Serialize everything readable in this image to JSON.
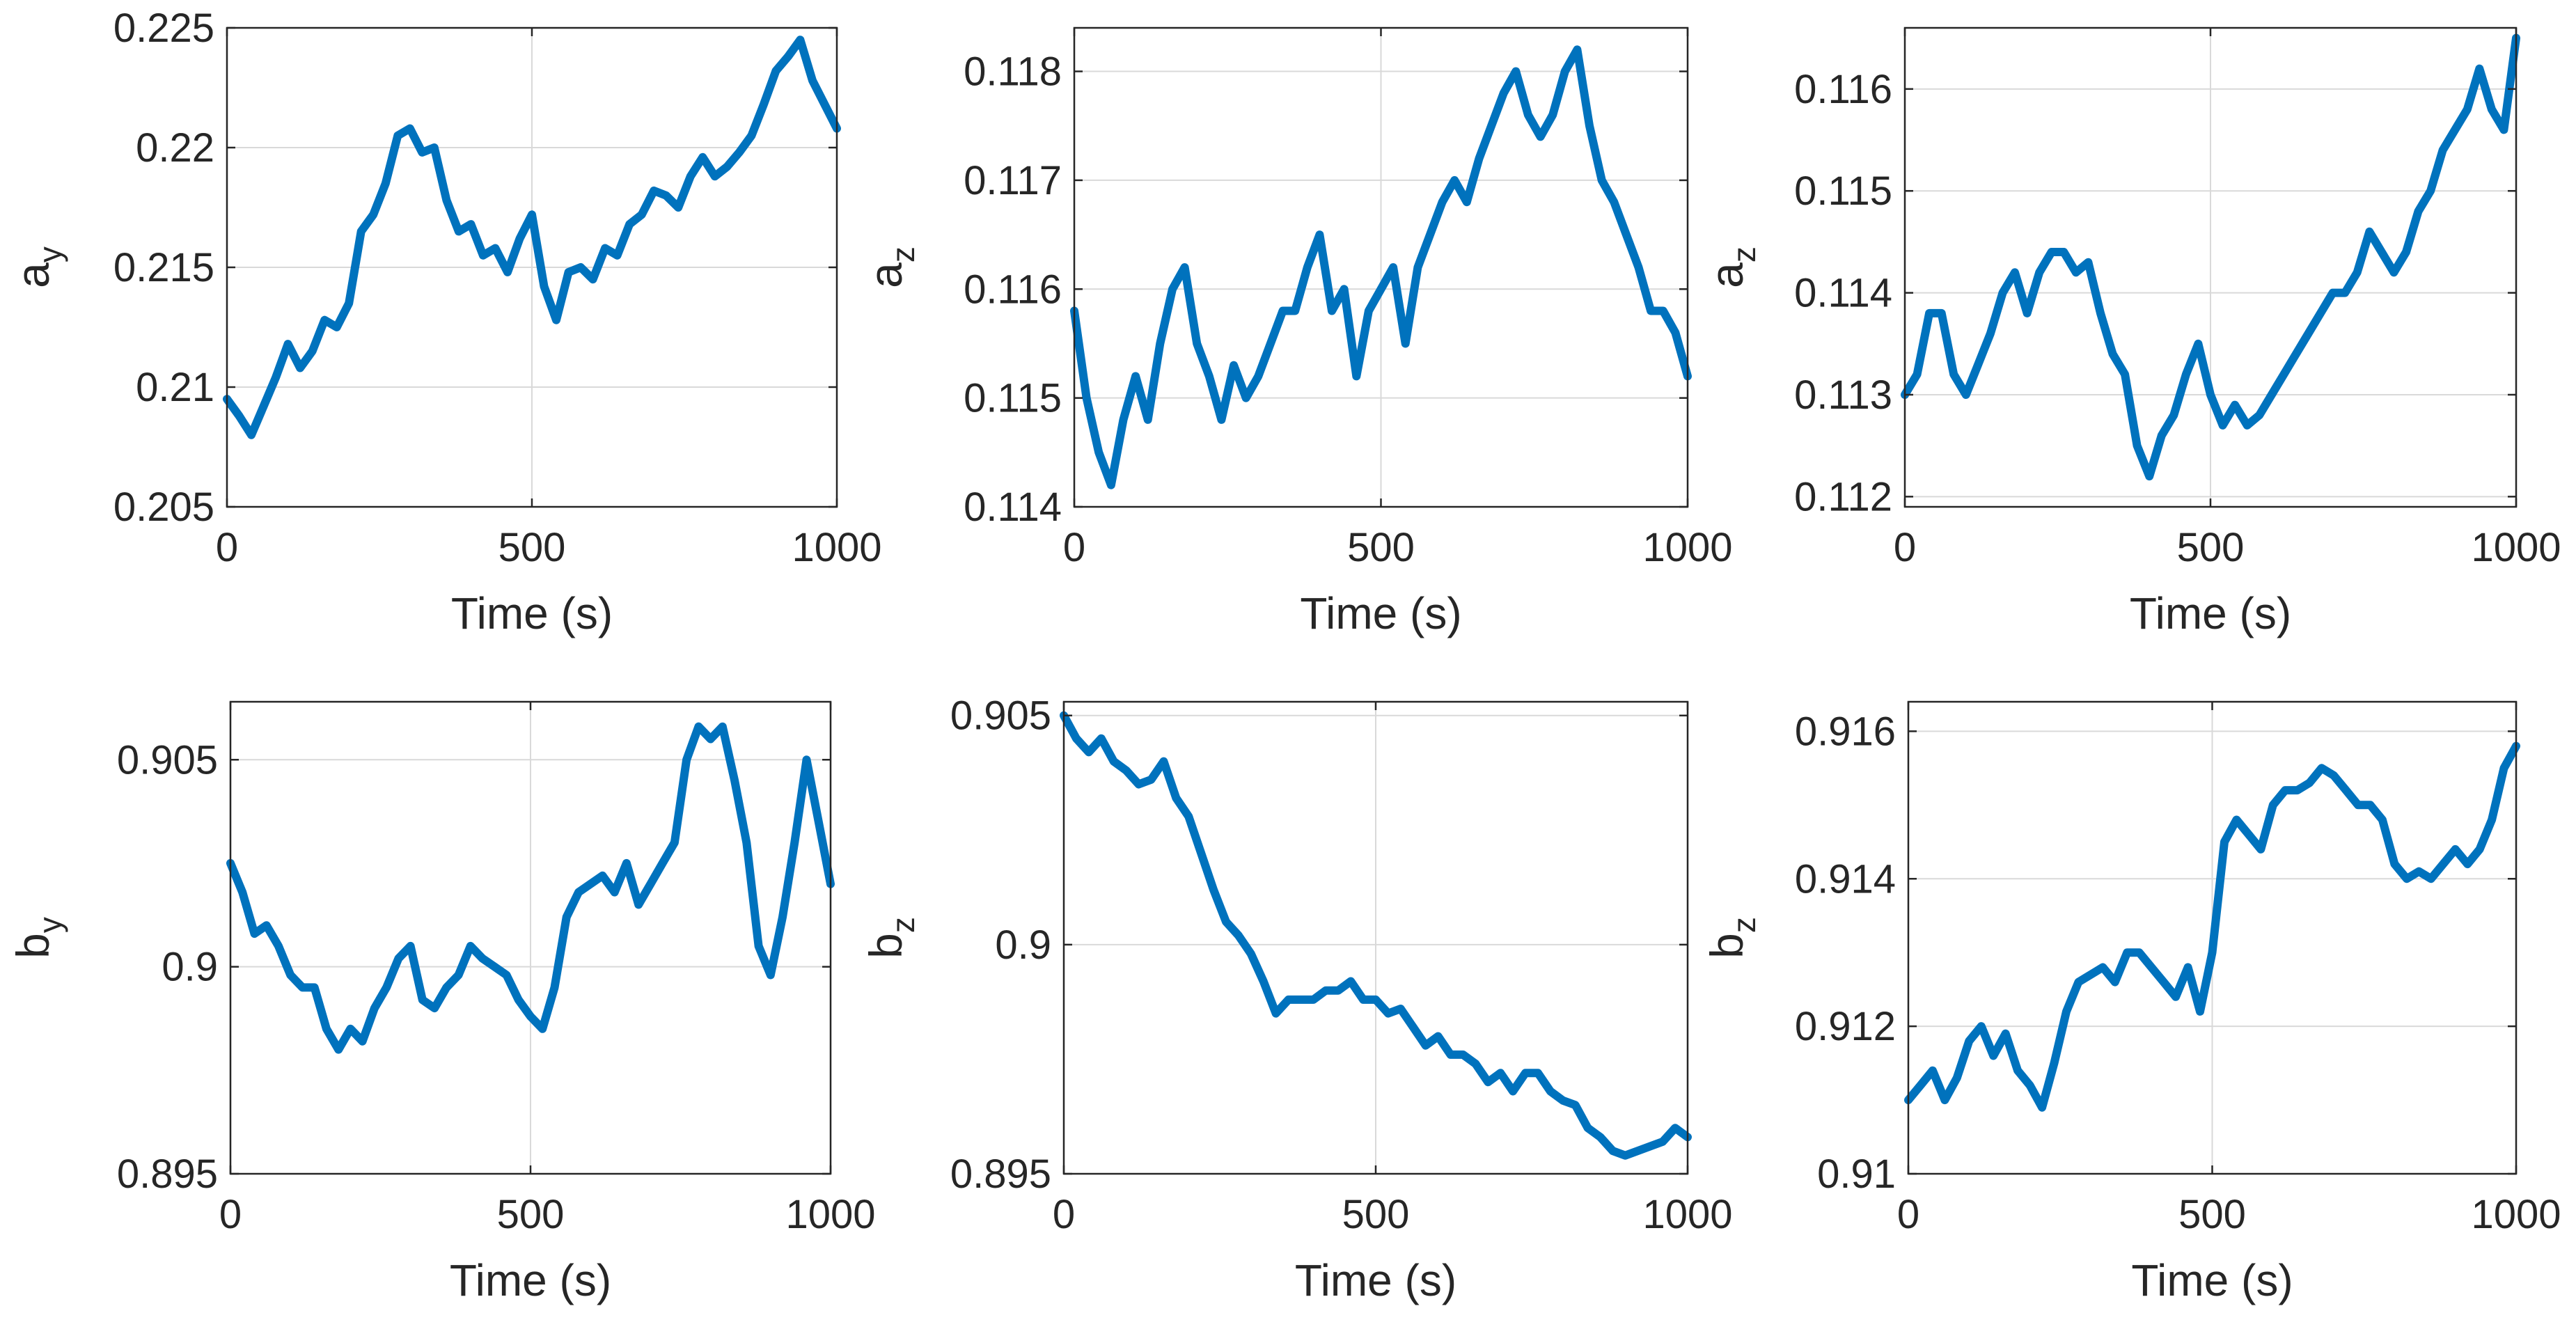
{
  "figure": {
    "line_color": "#0072BD",
    "grid_color": "#d9d9d9",
    "axis_color": "#262626"
  },
  "chart_data": [
    {
      "type": "line",
      "xlabel": "Time (s)",
      "ylabel_main": "a",
      "ylabel_sub": "y",
      "xlim": [
        0,
        1000
      ],
      "ylim": [
        0.205,
        0.225
      ],
      "xticks": [
        0,
        500,
        1000
      ],
      "xtick_labels": [
        "0",
        "500",
        "1000"
      ],
      "yticks": [
        0.205,
        0.21,
        0.215,
        0.22,
        0.225
      ],
      "ytick_labels": [
        "0.205",
        "0.21",
        "0.215",
        "0.22",
        "0.225"
      ],
      "grid": true,
      "series": [
        {
          "x": [
            0,
            20,
            40,
            60,
            80,
            100,
            120,
            140,
            160,
            180,
            200,
            220,
            240,
            260,
            280,
            300,
            320,
            340,
            360,
            380,
            400,
            420,
            440,
            460,
            480,
            500,
            520,
            540,
            560,
            580,
            600,
            620,
            640,
            660,
            680,
            700,
            720,
            740,
            760,
            780,
            800,
            820,
            840,
            860,
            880,
            900,
            920,
            940,
            960,
            980,
            1000
          ],
          "y": [
            0.2095,
            0.2088,
            0.208,
            0.2092,
            0.2104,
            0.2118,
            0.2108,
            0.2115,
            0.2128,
            0.2125,
            0.2135,
            0.2165,
            0.2172,
            0.2185,
            0.2205,
            0.2208,
            0.2198,
            0.22,
            0.2178,
            0.2165,
            0.2168,
            0.2155,
            0.2158,
            0.2148,
            0.2162,
            0.2172,
            0.2142,
            0.2128,
            0.2148,
            0.215,
            0.2145,
            0.2158,
            0.2155,
            0.2168,
            0.2172,
            0.2182,
            0.218,
            0.2175,
            0.2188,
            0.2196,
            0.2188,
            0.2192,
            0.2198,
            0.2205,
            0.2218,
            0.2232,
            0.2238,
            0.2245,
            0.2228,
            0.2218,
            0.2208
          ]
        }
      ]
    },
    {
      "type": "line",
      "xlabel": "Time (s)",
      "ylabel_main": "a",
      "ylabel_sub": "z",
      "xlim": [
        0,
        1000
      ],
      "ylim": [
        0.114,
        0.1184
      ],
      "xticks": [
        0,
        500,
        1000
      ],
      "xtick_labels": [
        "0",
        "500",
        "1000"
      ],
      "yticks": [
        0.114,
        0.115,
        0.116,
        0.117,
        0.118
      ],
      "ytick_labels": [
        "0.114",
        "0.115",
        "0.116",
        "0.117",
        "0.118"
      ],
      "grid": true,
      "series": [
        {
          "x": [
            0,
            20,
            40,
            60,
            80,
            100,
            120,
            140,
            160,
            180,
            200,
            220,
            240,
            260,
            280,
            300,
            320,
            340,
            360,
            380,
            400,
            420,
            440,
            460,
            480,
            500,
            520,
            540,
            560,
            580,
            600,
            620,
            640,
            660,
            680,
            700,
            720,
            740,
            760,
            780,
            800,
            820,
            840,
            860,
            880,
            900,
            920,
            940,
            960,
            980,
            1000
          ],
          "y": [
            0.1158,
            0.115,
            0.1145,
            0.1142,
            0.1148,
            0.1152,
            0.1148,
            0.1155,
            0.116,
            0.1162,
            0.1155,
            0.1152,
            0.1148,
            0.1153,
            0.115,
            0.1152,
            0.1155,
            0.1158,
            0.1158,
            0.1162,
            0.1165,
            0.1158,
            0.116,
            0.1152,
            0.1158,
            0.116,
            0.1162,
            0.1155,
            0.1162,
            0.1165,
            0.1168,
            0.117,
            0.1168,
            0.1172,
            0.1175,
            0.1178,
            0.118,
            0.1176,
            0.1174,
            0.1176,
            0.118,
            0.1182,
            0.1175,
            0.117,
            0.1168,
            0.1165,
            0.1162,
            0.1158,
            0.1158,
            0.1156,
            0.1152
          ]
        }
      ]
    },
    {
      "type": "line",
      "xlabel": "Time (s)",
      "ylabel_main": "a",
      "ylabel_sub": "z",
      "xlim": [
        0,
        1000
      ],
      "ylim": [
        0.1119,
        0.1166
      ],
      "xticks": [
        0,
        500,
        1000
      ],
      "xtick_labels": [
        "0",
        "500",
        "1000"
      ],
      "yticks": [
        0.112,
        0.113,
        0.114,
        0.115,
        0.116
      ],
      "ytick_labels": [
        "0.112",
        "0.113",
        "0.114",
        "0.115",
        "0.116"
      ],
      "grid": true,
      "series": [
        {
          "x": [
            0,
            20,
            40,
            60,
            80,
            100,
            120,
            140,
            160,
            180,
            200,
            220,
            240,
            260,
            280,
            300,
            320,
            340,
            360,
            380,
            400,
            420,
            440,
            460,
            480,
            500,
            520,
            540,
            560,
            580,
            600,
            620,
            640,
            660,
            680,
            700,
            720,
            740,
            760,
            780,
            800,
            820,
            840,
            860,
            880,
            900,
            920,
            940,
            960,
            980,
            1000
          ],
          "y": [
            0.113,
            0.1132,
            0.1138,
            0.1138,
            0.1132,
            0.113,
            0.1133,
            0.1136,
            0.114,
            0.1142,
            0.1138,
            0.1142,
            0.1144,
            0.1144,
            0.1142,
            0.1143,
            0.1138,
            0.1134,
            0.1132,
            0.1125,
            0.1122,
            0.1126,
            0.1128,
            0.1132,
            0.1135,
            0.113,
            0.1127,
            0.1129,
            0.1127,
            0.1128,
            0.113,
            0.1132,
            0.1134,
            0.1136,
            0.1138,
            0.114,
            0.114,
            0.1142,
            0.1146,
            0.1144,
            0.1142,
            0.1144,
            0.1148,
            0.115,
            0.1154,
            0.1156,
            0.1158,
            0.1162,
            0.1158,
            0.1156,
            0.1165
          ]
        }
      ]
    },
    {
      "type": "line",
      "xlabel": "Time (s)",
      "ylabel_main": "b",
      "ylabel_sub": "y",
      "xlim": [
        0,
        1000
      ],
      "ylim": [
        0.895,
        0.9064
      ],
      "xticks": [
        0,
        500,
        1000
      ],
      "xtick_labels": [
        "0",
        "500",
        "1000"
      ],
      "yticks": [
        0.895,
        0.9,
        0.905
      ],
      "ytick_labels": [
        "0.895",
        "0.9",
        "0.905"
      ],
      "grid": true,
      "series": [
        {
          "x": [
            0,
            20,
            40,
            60,
            80,
            100,
            120,
            140,
            160,
            180,
            200,
            220,
            240,
            260,
            280,
            300,
            320,
            340,
            360,
            380,
            400,
            420,
            440,
            460,
            480,
            500,
            520,
            540,
            560,
            580,
            600,
            620,
            640,
            660,
            680,
            700,
            720,
            740,
            760,
            780,
            800,
            820,
            840,
            860,
            880,
            900,
            920,
            940,
            960,
            980,
            1000
          ],
          "y": [
            0.9025,
            0.9018,
            0.9008,
            0.901,
            0.9005,
            0.8998,
            0.8995,
            0.8995,
            0.8985,
            0.898,
            0.8985,
            0.8982,
            0.899,
            0.8995,
            0.9002,
            0.9005,
            0.8992,
            0.899,
            0.8995,
            0.8998,
            0.9005,
            0.9002,
            0.9,
            0.8998,
            0.8992,
            0.8988,
            0.8985,
            0.8995,
            0.9012,
            0.9018,
            0.902,
            0.9022,
            0.9018,
            0.9025,
            0.9015,
            0.902,
            0.9025,
            0.903,
            0.905,
            0.9058,
            0.9055,
            0.9058,
            0.9045,
            0.903,
            0.9005,
            0.8998,
            0.9012,
            0.903,
            0.905,
            0.9035,
            0.902
          ]
        }
      ]
    },
    {
      "type": "line",
      "xlabel": "Time (s)",
      "ylabel_main": "b",
      "ylabel_sub": "z",
      "xlim": [
        0,
        1000
      ],
      "ylim": [
        0.895,
        0.9053
      ],
      "xticks": [
        0,
        500,
        1000
      ],
      "xtick_labels": [
        "0",
        "500",
        "1000"
      ],
      "yticks": [
        0.895,
        0.9,
        0.905
      ],
      "ytick_labels": [
        "0.895",
        "0.9",
        "0.905"
      ],
      "grid": true,
      "series": [
        {
          "x": [
            0,
            20,
            40,
            60,
            80,
            100,
            120,
            140,
            160,
            180,
            200,
            220,
            240,
            260,
            280,
            300,
            320,
            340,
            360,
            380,
            400,
            420,
            440,
            460,
            480,
            500,
            520,
            540,
            560,
            580,
            600,
            620,
            640,
            660,
            680,
            700,
            720,
            740,
            760,
            780,
            800,
            820,
            840,
            860,
            880,
            900,
            920,
            940,
            960,
            980,
            1000
          ],
          "y": [
            0.905,
            0.9045,
            0.9042,
            0.9045,
            0.904,
            0.9038,
            0.9035,
            0.9036,
            0.904,
            0.9032,
            0.9028,
            0.902,
            0.9012,
            0.9005,
            0.9002,
            0.8998,
            0.8992,
            0.8985,
            0.8988,
            0.8988,
            0.8988,
            0.899,
            0.899,
            0.8992,
            0.8988,
            0.8988,
            0.8985,
            0.8986,
            0.8982,
            0.8978,
            0.898,
            0.8976,
            0.8976,
            0.8974,
            0.897,
            0.8972,
            0.8968,
            0.8972,
            0.8972,
            0.8968,
            0.8966,
            0.8965,
            0.896,
            0.8958,
            0.8955,
            0.8954,
            0.8955,
            0.8956,
            0.8957,
            0.896,
            0.8958
          ]
        }
      ]
    },
    {
      "type": "line",
      "xlabel": "Time (s)",
      "ylabel_main": "b",
      "ylabel_sub": "z",
      "xlim": [
        0,
        1000
      ],
      "ylim": [
        0.91,
        0.9164
      ],
      "xticks": [
        0,
        500,
        1000
      ],
      "xtick_labels": [
        "0",
        "500",
        "1000"
      ],
      "yticks": [
        0.91,
        0.912,
        0.914,
        0.916
      ],
      "ytick_labels": [
        "0.91",
        "0.912",
        "0.914",
        "0.916"
      ],
      "grid": true,
      "series": [
        {
          "x": [
            0,
            20,
            40,
            60,
            80,
            100,
            120,
            140,
            160,
            180,
            200,
            220,
            240,
            260,
            280,
            300,
            320,
            340,
            360,
            380,
            400,
            420,
            440,
            460,
            480,
            500,
            520,
            540,
            560,
            580,
            600,
            620,
            640,
            660,
            680,
            700,
            720,
            740,
            760,
            780,
            800,
            820,
            840,
            860,
            880,
            900,
            920,
            940,
            960,
            980,
            1000
          ],
          "y": [
            0.911,
            0.9112,
            0.9114,
            0.911,
            0.9113,
            0.9118,
            0.912,
            0.9116,
            0.9119,
            0.9114,
            0.9112,
            0.9109,
            0.9115,
            0.9122,
            0.9126,
            0.9127,
            0.9128,
            0.9126,
            0.913,
            0.913,
            0.9128,
            0.9126,
            0.9124,
            0.9128,
            0.9122,
            0.913,
            0.9145,
            0.9148,
            0.9146,
            0.9144,
            0.915,
            0.9152,
            0.9152,
            0.9153,
            0.9155,
            0.9154,
            0.9152,
            0.915,
            0.915,
            0.9148,
            0.9142,
            0.914,
            0.9141,
            0.914,
            0.9142,
            0.9144,
            0.9142,
            0.9144,
            0.9148,
            0.9155,
            0.9158
          ]
        }
      ]
    }
  ]
}
